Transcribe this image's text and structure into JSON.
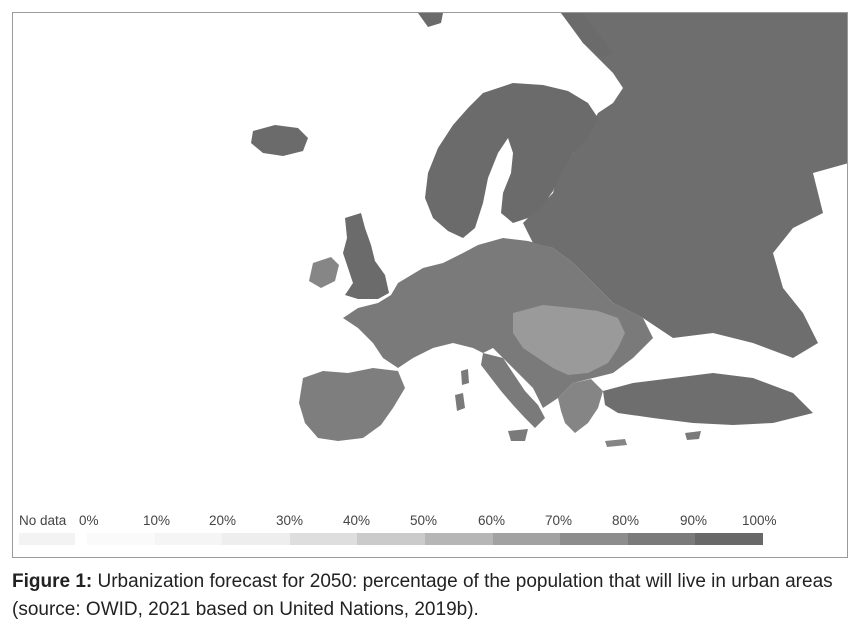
{
  "map": {
    "region": "Europe",
    "grid": false
  },
  "legend": {
    "no_data_label": "No data",
    "ticks": [
      "0%",
      "10%",
      "20%",
      "30%",
      "40%",
      "50%",
      "60%",
      "70%",
      "80%",
      "90%",
      "100%"
    ],
    "colors": {
      "no_data": "#f3f3f3",
      "bins": [
        "#fafafa",
        "#f5f5f5",
        "#eeeeee",
        "#dedede",
        "#cbcbcb",
        "#b6b6b6",
        "#a2a2a2",
        "#8d8d8d",
        "#7a7a7a",
        "#686868"
      ]
    }
  },
  "colors": {
    "land_high": "#6b6b6b",
    "land_mid": "#808080",
    "land_central": "#9a9a9a",
    "background": "#ffffff"
  },
  "caption": {
    "label": "Figure 1:",
    "text": " Urbanization forecast for 2050: percentage of the population that will live in urban areas (source: OWID, 2021 based on United Nations, 2019b)."
  }
}
